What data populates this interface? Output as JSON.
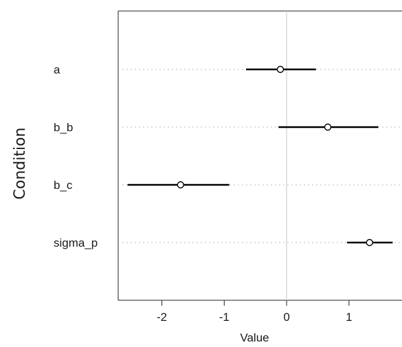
{
  "chart_data": {
    "type": "scatter",
    "subtype": "dot-and-whisker interval plot",
    "xlabel": "Value",
    "ylabel": "Condition",
    "xlim": [
      -2.7,
      1.85
    ],
    "xticks": [
      -2,
      -1,
      0,
      1
    ],
    "xtick_labels": [
      "-2",
      "-1",
      "0",
      "1"
    ],
    "reference_line_x": 0,
    "grid": "dotted horizontal guide per row",
    "legend": "none",
    "categories": [
      "a",
      "b_b",
      "b_c",
      "sigma_p"
    ],
    "series": [
      {
        "points": [
          {
            "label": "a",
            "estimate": -0.1,
            "lower": -0.65,
            "upper": 0.47
          },
          {
            "label": "b_b",
            "estimate": 0.66,
            "lower": -0.13,
            "upper": 1.47
          },
          {
            "label": "b_c",
            "estimate": -1.7,
            "lower": -2.55,
            "upper": -0.92
          },
          {
            "label": "sigma_p",
            "estimate": 1.33,
            "lower": 0.97,
            "upper": 1.7
          }
        ]
      }
    ]
  },
  "colors": {
    "background": "#ffffff",
    "axis": "#222222",
    "interval": "#000000",
    "point": "#000000",
    "zero_line": "#d0d0d0",
    "guide": "#c8c8c8"
  }
}
